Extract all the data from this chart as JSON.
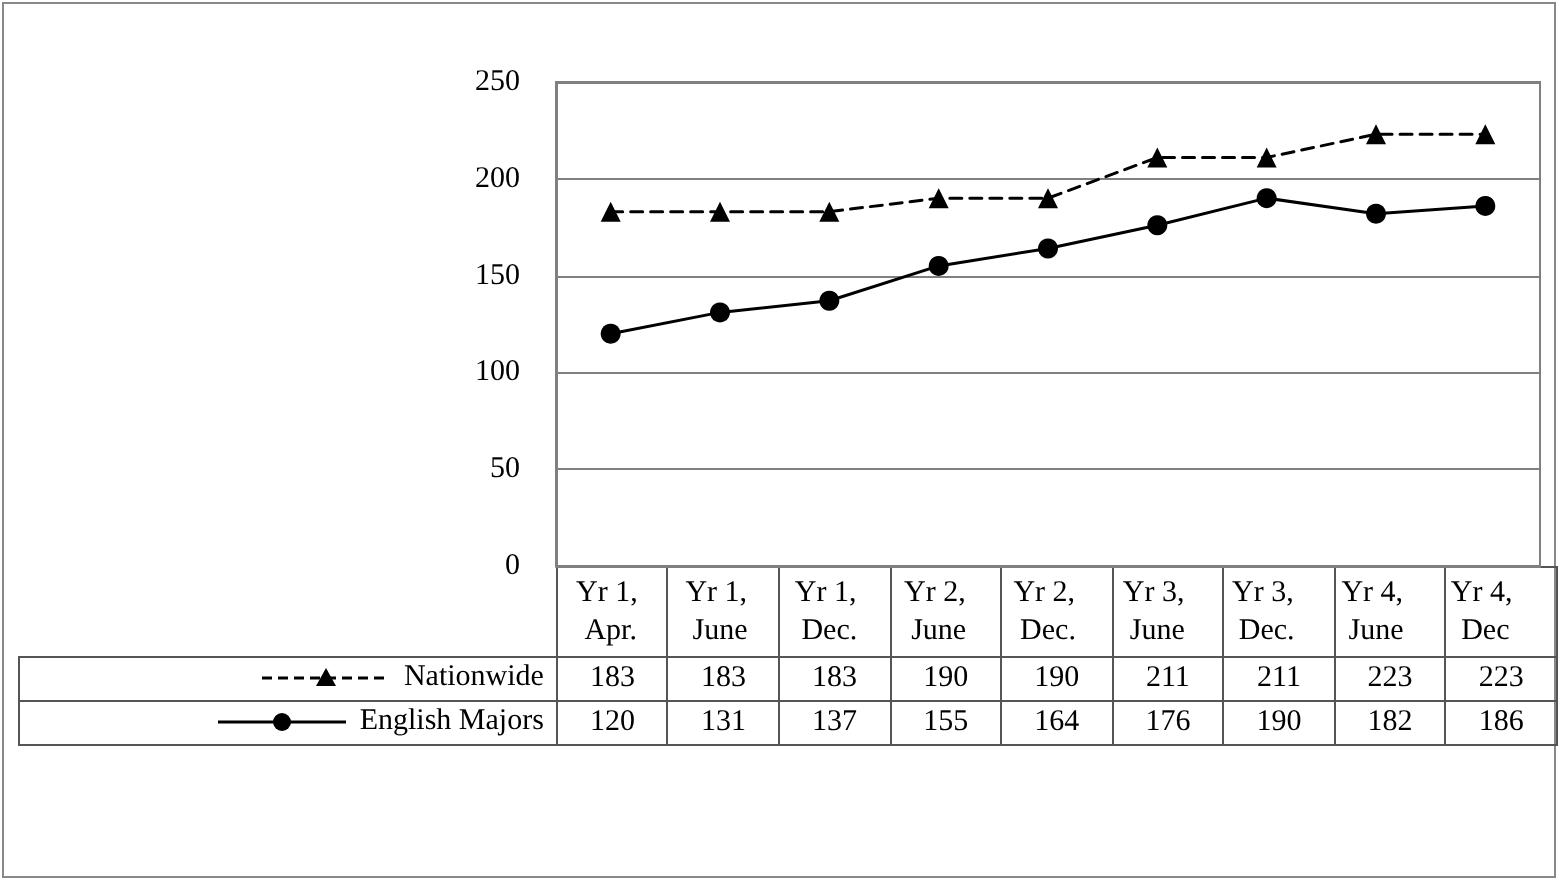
{
  "chart_data": {
    "type": "line",
    "categories": [
      "Yr 1, Apr.",
      "Yr 1, June",
      "Yr 1, Dec.",
      "Yr 2, June",
      "Yr 2, Dec.",
      "Yr 3, June",
      "Yr 3, Dec.",
      "Yr 4, June",
      "Yr 4, Dec"
    ],
    "series": [
      {
        "name": "Nationwide",
        "color": "#000000",
        "marker": "triangle",
        "line_style": "dashed",
        "values": [
          183,
          183,
          183,
          190,
          190,
          211,
          211,
          223,
          223
        ]
      },
      {
        "name": "English Majors",
        "color": "#000000",
        "marker": "circle",
        "line_style": "solid",
        "values": [
          120,
          131,
          137,
          155,
          164,
          176,
          190,
          182,
          186
        ]
      }
    ],
    "ylim": [
      0,
      250
    ],
    "yticks": [
      0,
      50,
      100,
      150,
      200,
      250
    ],
    "grid": "y",
    "legend": "bottom left",
    "data_labels": true
  }
}
